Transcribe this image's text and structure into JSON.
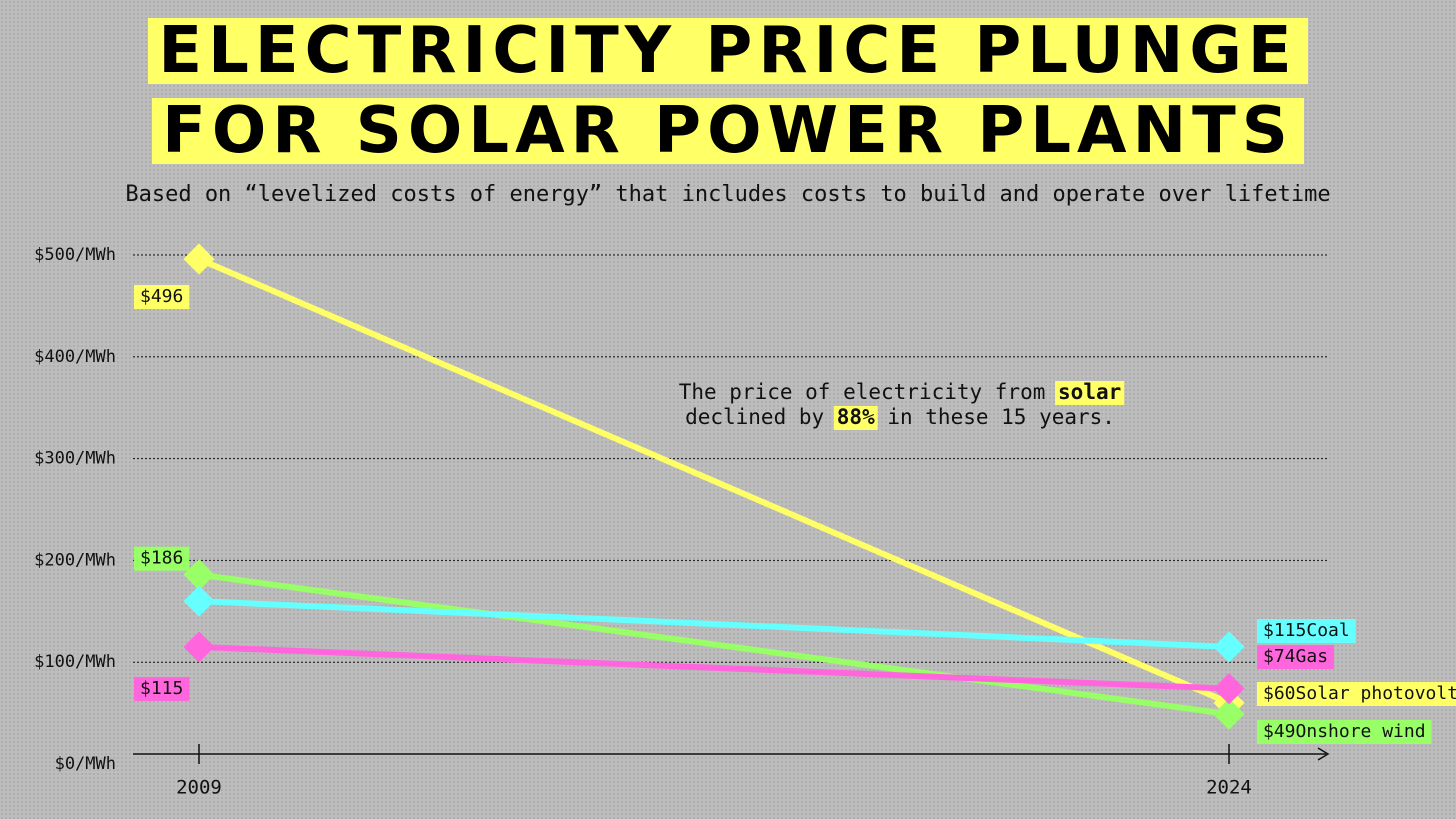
{
  "chart_data": {
    "type": "line",
    "title": [
      "ELECTRICITY PRICE PLUNGE",
      "FOR SOLAR POWER PLANTS"
    ],
    "subtitle": "Based on “levelized costs of energy” that includes costs to build and operate over lifetime",
    "annotation": [
      [
        "The price of electricity from ",
        "solar"
      ],
      [
        "declined by ",
        "88%",
        " in these 15 years."
      ]
    ],
    "categories": [
      "2009",
      "2024"
    ],
    "series": [
      {
        "name": "Solar photovoltaic",
        "color": "#ffff66",
        "values": [
          496,
          60
        ],
        "value_labels": [
          "$496",
          "$60"
        ]
      },
      {
        "name": "Onshore wind",
        "color": "#99ff66",
        "values": [
          186,
          49
        ],
        "value_labels": [
          "$186",
          "$49"
        ]
      },
      {
        "name": "Coal",
        "color": "#66ffff",
        "values": [
          160,
          115
        ],
        "value_labels": [
          null,
          "$115"
        ]
      },
      {
        "name": "Gas",
        "color": "#ff66dd",
        "values": [
          115,
          74
        ],
        "value_labels": [
          "$115",
          "$74"
        ]
      }
    ],
    "ylim": [
      0,
      500
    ],
    "yticks": [
      {
        "value": 0,
        "label": "$0/MWh"
      },
      {
        "value": 100,
        "label": "$100/MWh"
      },
      {
        "value": 200,
        "label": "$200/MWh"
      },
      {
        "value": 300,
        "label": "$300/MWh"
      },
      {
        "value": 400,
        "label": "$400/MWh"
      },
      {
        "value": 500,
        "label": "$500/MWh"
      }
    ],
    "grid": true
  }
}
